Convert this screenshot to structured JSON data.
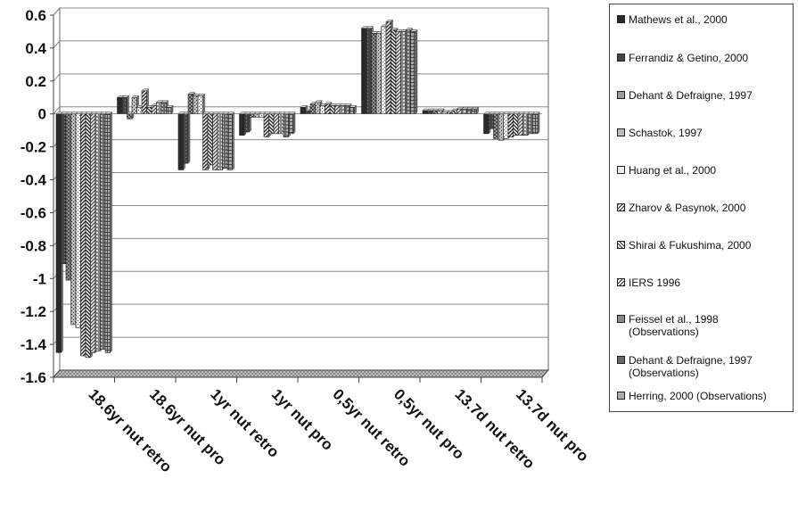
{
  "chart_data": {
    "type": "bar",
    "categories": [
      "18.6yr nut retro",
      "18.6yr nut pro",
      "1yr nut retro",
      "1yr nut pro",
      "0,5yr nut retro",
      "0,5yr nut pro",
      "13.7d nut retro",
      "13.7d nut pro"
    ],
    "ylim": [
      -1.6,
      0.6
    ],
    "yticks": [
      "0.6",
      "0.4",
      "0.2",
      "0",
      "-0.2",
      "-0.4",
      "-0.6",
      "-0.8",
      "-1",
      "-1.2",
      "-1.4",
      "-1.6"
    ],
    "grid": true,
    "legend_position": "right",
    "series": [
      {
        "name": "Mathews et al., 2000",
        "values": [
          -1.45,
          0.1,
          -0.34,
          -0.13,
          0.04,
          0.52,
          0.02,
          -0.12
        ]
      },
      {
        "name": "Ferrandiz & Getino, 2000",
        "values": [
          -0.91,
          0.1,
          -0.3,
          -0.11,
          0.02,
          0.52,
          0.02,
          -0.09
        ]
      },
      {
        "name": "Dehant & Defraigne, 1997",
        "values": [
          -1.01,
          -0.03,
          0.12,
          -0.02,
          0.06,
          0.49,
          0.02,
          -0.15
        ]
      },
      {
        "name": "Schastok, 1997",
        "values": [
          -1.28,
          0.1,
          0.11,
          -0.02,
          0.07,
          0.49,
          0.02,
          -0.16
        ]
      },
      {
        "name": "Huang et al., 2000",
        "values": [
          -1.3,
          0.04,
          0.11,
          -0.02,
          0.05,
          0.53,
          0.01,
          -0.15
        ]
      },
      {
        "name": "Zharov & Pasynok, 2000",
        "values": [
          -1.47,
          0.14,
          -0.34,
          -0.14,
          0.06,
          0.56,
          0.01,
          -0.14
        ]
      },
      {
        "name": "Shirai & Fukushima, 2000",
        "values": [
          -1.48,
          0.04,
          -0.31,
          -0.12,
          0.05,
          0.51,
          0.02,
          -0.13
        ]
      },
      {
        "name": "IERS 1996",
        "values": [
          -1.45,
          0.05,
          -0.34,
          -0.12,
          0.05,
          0.5,
          0.03,
          -0.13
        ]
      },
      {
        "name": "Feissel et al., 1998\n(Observations)",
        "values": [
          -1.44,
          0.07,
          -0.34,
          -0.12,
          0.05,
          0.5,
          0.03,
          -0.13
        ]
      },
      {
        "name": "Dehant & Defraigne, 1997\n(Observations)",
        "values": [
          -1.43,
          0.07,
          -0.33,
          -0.14,
          0.05,
          0.51,
          0.03,
          -0.12
        ]
      },
      {
        "name": "Herring, 2000 (Observations)",
        "values": [
          -1.45,
          0.04,
          -0.34,
          -0.12,
          0.04,
          0.5,
          0.03,
          -0.12
        ]
      }
    ]
  }
}
